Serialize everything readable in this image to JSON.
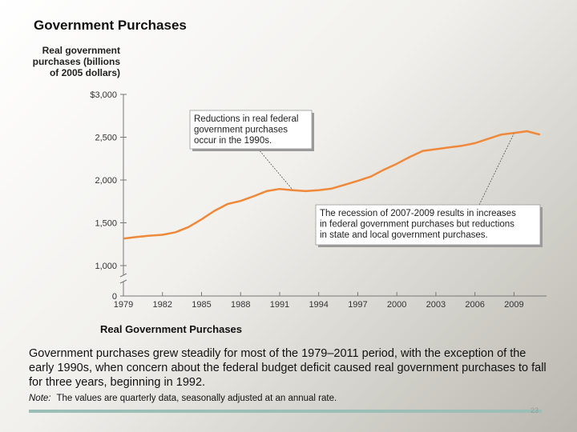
{
  "slide": {
    "title": "Government Purchases",
    "chart_caption": "Real Government Purchases",
    "caption": "Government purchases grew steadily for most of the 1979–2011 period, with the exception of the early 1990s, when concern about the federal budget deficit caused real government purchases to fall for three years, beginning in 1992.",
    "note_label": "Note:",
    "note_text": "The values are quarterly data, seasonally adjusted at an annual rate.",
    "page_mark": "23"
  },
  "chart_data": {
    "type": "line",
    "title": "",
    "ylabel": "Real government purchases (billions of 2005 dollars)",
    "ylabel_lines": [
      "Real government",
      "purchases (billions",
      "of 2005 dollars)"
    ],
    "xlabel": "",
    "ylim": [
      0,
      3000
    ],
    "xlim": [
      1979,
      2011.5
    ],
    "y_ticks": [
      0,
      1000,
      1500,
      2000,
      2500,
      3000
    ],
    "y_tick_labels": [
      "0",
      "1,000",
      "1,500",
      "2,000",
      "2,500",
      "$3,000"
    ],
    "x_ticks": [
      1979,
      1982,
      1985,
      1988,
      1991,
      1994,
      1997,
      2000,
      2003,
      2006,
      2009
    ],
    "x_tick_labels": [
      "1979",
      "1982",
      "1985",
      "1988",
      "1991",
      "1994",
      "1997",
      "2000",
      "2003",
      "2006",
      "2009"
    ],
    "axis_break": true,
    "grid": false,
    "line_color": "#f0883a",
    "series": [
      {
        "values": [
          [
            1979,
            1315
          ],
          [
            1980,
            1335
          ],
          [
            1981,
            1350
          ],
          [
            1982,
            1360
          ],
          [
            1983,
            1390
          ],
          [
            1984,
            1450
          ],
          [
            1985,
            1540
          ],
          [
            1986,
            1640
          ],
          [
            1987,
            1720
          ],
          [
            1988,
            1755
          ],
          [
            1989,
            1810
          ],
          [
            1990,
            1870
          ],
          [
            1991,
            1895
          ],
          [
            1992,
            1880
          ],
          [
            1993,
            1870
          ],
          [
            1994,
            1880
          ],
          [
            1995,
            1900
          ],
          [
            1996,
            1945
          ],
          [
            1997,
            1990
          ],
          [
            1998,
            2040
          ],
          [
            1999,
            2120
          ],
          [
            2000,
            2190
          ],
          [
            2001,
            2270
          ],
          [
            2002,
            2340
          ],
          [
            2003,
            2360
          ],
          [
            2004,
            2380
          ],
          [
            2005,
            2400
          ],
          [
            2006,
            2430
          ],
          [
            2007,
            2480
          ],
          [
            2008,
            2530
          ],
          [
            2009,
            2550
          ],
          [
            2010,
            2570
          ],
          [
            2011,
            2530
          ]
        ]
      }
    ],
    "annotations": [
      {
        "lines": [
          "Reductions in real federal",
          "government purchases",
          "occur in the 1990s."
        ],
        "points_to": [
          1992,
          1885
        ]
      },
      {
        "lines": [
          "The recession of 2007-2009 results in increases",
          "in federal government purchases but reductions",
          "in state and local government purchases."
        ],
        "points_to": [
          2009,
          2545
        ]
      }
    ]
  }
}
